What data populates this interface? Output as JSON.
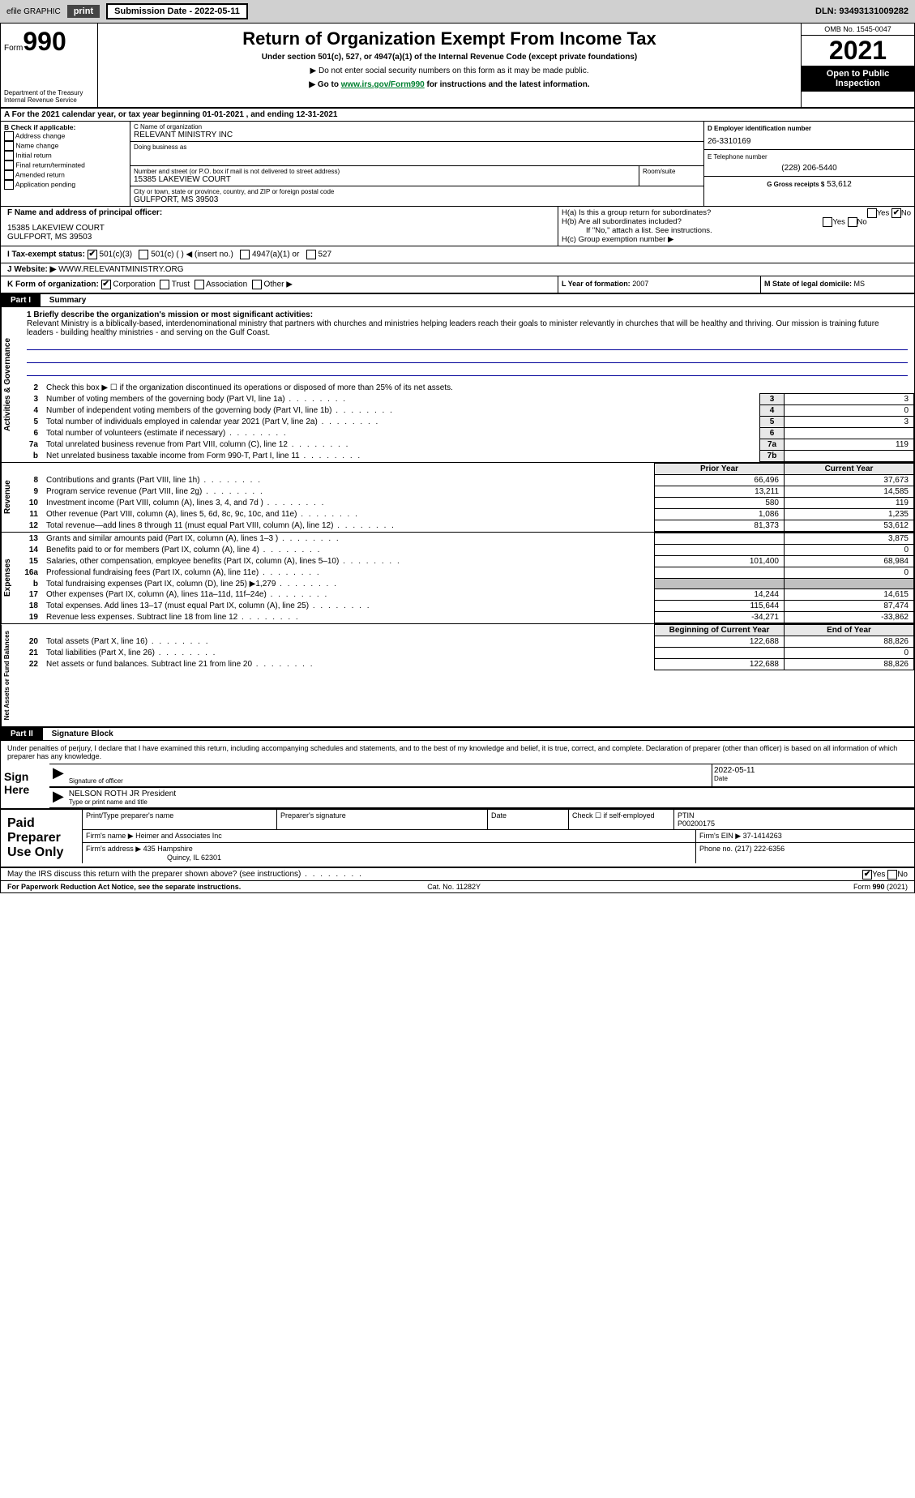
{
  "header_bar": {
    "efile": "efile GRAPHIC",
    "print": "print",
    "sub_label": "Submission Date - 2022-05-11",
    "dln": "DLN: 93493131009282"
  },
  "form_box": {
    "form_word": "Form",
    "number": "990",
    "title": "Return of Organization Exempt From Income Tax",
    "sub1": "Under section 501(c), 527, or 4947(a)(1) of the Internal Revenue Code (except private foundations)",
    "sub2": "▶ Do not enter social security numbers on this form as it may be made public.",
    "sub3_pre": "▶ Go to ",
    "sub3_link": "www.irs.gov/Form990",
    "sub3_post": " for instructions and the latest information.",
    "omb": "OMB No. 1545-0047",
    "year": "2021",
    "open": "Open to Public Inspection",
    "dept": "Department of the Treasury\nInternal Revenue Service"
  },
  "line_a": "For the 2021 calendar year, or tax year beginning 01-01-2021    , and ending 12-31-2021",
  "box_b": {
    "title": "B Check if applicable:",
    "opts": [
      "Address change",
      "Name change",
      "Initial return",
      "Final return/terminated",
      "Amended return",
      "Application pending"
    ]
  },
  "box_c": {
    "label_name": "C Name of organization",
    "org": "RELEVANT MINISTRY INC",
    "dba": "Doing business as",
    "street_label": "Number and street (or P.O. box if mail is not delivered to street address)",
    "room_label": "Room/suite",
    "street": "15385 LAKEVIEW COURT",
    "city_label": "City or town, state or province, country, and ZIP or foreign postal code",
    "city": "GULFPORT, MS  39503"
  },
  "box_d": {
    "label": "D Employer identification number",
    "val": "26-3310169"
  },
  "box_e": {
    "label": "E Telephone number",
    "val": "(228) 206-5440"
  },
  "box_g": {
    "label": "G Gross receipts $",
    "val": "53,612"
  },
  "box_f": {
    "label": "F  Name and address of principal officer:",
    "addr1": "15385 LAKEVIEW COURT",
    "addr2": "GULFPORT, MS  39503"
  },
  "box_h": {
    "a": "H(a)  Is this a group return for subordinates?",
    "b": "H(b)  Are all subordinates included?",
    "b_note": "If \"No,\" attach a list. See instructions.",
    "c": "H(c)  Group exemption number ▶"
  },
  "row_i": {
    "label": "I  Tax-exempt status:",
    "opts": [
      "501(c)(3)",
      "501(c) (   ) ◀ (insert no.)",
      "4947(a)(1) or",
      "527"
    ]
  },
  "row_j": {
    "label": "J  Website: ▶",
    "val": "WWW.RELEVANTMINISTRY.ORG"
  },
  "row_k": {
    "label": "K Form of organization:",
    "opts": [
      "Corporation",
      "Trust",
      "Association",
      "Other ▶"
    ]
  },
  "row_l": {
    "label": "L Year of formation:",
    "val": "2007"
  },
  "row_m": {
    "label": "M State of legal domicile:",
    "val": "MS"
  },
  "part1": {
    "hdr": "Part I",
    "title": "Summary"
  },
  "mission": {
    "label": "1  Briefly describe the organization's mission or most significant activities:",
    "text": "Relevant Ministry is a biblically-based, interdenominational ministry that partners with churches and ministries helping leaders reach their goals to minister relevantly in churches that will be healthy and thriving. Our mission is training future leaders - building healthy ministries - and serving on the Gulf Coast."
  },
  "side_labels": {
    "gov": "Activities & Governance",
    "rev": "Revenue",
    "exp": "Expenses",
    "net": "Net Assets or Fund Balances"
  },
  "gov_lines": {
    "l2": "Check this box ▶ ☐  if the organization discontinued its operations or disposed of more than 25% of its net assets.",
    "l3": {
      "t": "Number of voting members of the governing body (Part VI, line 1a)",
      "n": "3",
      "v": "3"
    },
    "l4": {
      "t": "Number of independent voting members of the governing body (Part VI, line 1b)",
      "n": "4",
      "v": "0"
    },
    "l5": {
      "t": "Total number of individuals employed in calendar year 2021 (Part V, line 2a)",
      "n": "5",
      "v": "3"
    },
    "l6": {
      "t": "Total number of volunteers (estimate if necessary)",
      "n": "6",
      "v": ""
    },
    "l7a": {
      "t": "Total unrelated business revenue from Part VIII, column (C), line 12",
      "n": "7a",
      "v": "119"
    },
    "l7b": {
      "t": "Net unrelated business taxable income from Form 990-T, Part I, line 11",
      "n": "7b",
      "v": ""
    }
  },
  "col_hdrs": {
    "prior": "Prior Year",
    "current": "Current Year",
    "beg": "Beginning of Current Year",
    "end": "End of Year"
  },
  "rev_lines": [
    {
      "n": "8",
      "t": "Contributions and grants (Part VIII, line 1h)",
      "p": "66,496",
      "c": "37,673"
    },
    {
      "n": "9",
      "t": "Program service revenue (Part VIII, line 2g)",
      "p": "13,211",
      "c": "14,585"
    },
    {
      "n": "10",
      "t": "Investment income (Part VIII, column (A), lines 3, 4, and 7d )",
      "p": "580",
      "c": "119"
    },
    {
      "n": "11",
      "t": "Other revenue (Part VIII, column (A), lines 5, 6d, 8c, 9c, 10c, and 11e)",
      "p": "1,086",
      "c": "1,235"
    },
    {
      "n": "12",
      "t": "Total revenue—add lines 8 through 11 (must equal Part VIII, column (A), line 12)",
      "p": "81,373",
      "c": "53,612"
    }
  ],
  "exp_lines": [
    {
      "n": "13",
      "t": "Grants and similar amounts paid (Part IX, column (A), lines 1–3 )",
      "p": "",
      "c": "3,875"
    },
    {
      "n": "14",
      "t": "Benefits paid to or for members (Part IX, column (A), line 4)",
      "p": "",
      "c": "0"
    },
    {
      "n": "15",
      "t": "Salaries, other compensation, employee benefits (Part IX, column (A), lines 5–10)",
      "p": "101,400",
      "c": "68,984"
    },
    {
      "n": "16a",
      "t": "Professional fundraising fees (Part IX, column (A), line 11e)",
      "p": "",
      "c": "0"
    },
    {
      "n": "b",
      "t": "Total fundraising expenses (Part IX, column (D), line 25) ▶1,279",
      "p": "GREY",
      "c": "GREY"
    },
    {
      "n": "17",
      "t": "Other expenses (Part IX, column (A), lines 11a–11d, 11f–24e)",
      "p": "14,244",
      "c": "14,615"
    },
    {
      "n": "18",
      "t": "Total expenses. Add lines 13–17 (must equal Part IX, column (A), line 25)",
      "p": "115,644",
      "c": "87,474"
    },
    {
      "n": "19",
      "t": "Revenue less expenses. Subtract line 18 from line 12",
      "p": "-34,271",
      "c": "-33,862"
    }
  ],
  "net_lines": [
    {
      "n": "20",
      "t": "Total assets (Part X, line 16)",
      "p": "122,688",
      "c": "88,826"
    },
    {
      "n": "21",
      "t": "Total liabilities (Part X, line 26)",
      "p": "",
      "c": "0"
    },
    {
      "n": "22",
      "t": "Net assets or fund balances. Subtract line 21 from line 20",
      "p": "122,688",
      "c": "88,826"
    }
  ],
  "part2": {
    "hdr": "Part II",
    "title": "Signature Block"
  },
  "sig_decl": "Under penalties of perjury, I declare that I have examined this return, including accompanying schedules and statements, and to the best of my knowledge and belief, it is true, correct, and complete. Declaration of preparer (other than officer) is based on all information of which preparer has any knowledge.",
  "sign": {
    "here": "Sign Here",
    "sig_of": "Signature of officer",
    "date": "Date",
    "date_val": "2022-05-11",
    "name": "NELSON ROTH JR President",
    "name_label": "Type or print name and title"
  },
  "paid": {
    "label": "Paid Preparer Use Only",
    "h_name": "Print/Type preparer's name",
    "h_sig": "Preparer's signature",
    "h_date": "Date",
    "h_check": "Check ☐ if self-employed",
    "h_ptin": "PTIN",
    "ptin": "P00200175",
    "firm_label": "Firm's name    ▶",
    "firm": "Heimer and Associates Inc",
    "ein_label": "Firm's EIN ▶",
    "ein": "37-1414263",
    "addr_label": "Firm's address ▶",
    "addr1": "435 Hampshire",
    "addr2": "Quincy, IL  62301",
    "phone_label": "Phone no.",
    "phone": "(217) 222-6356"
  },
  "discuss": "May the IRS discuss this return with the preparer shown above? (see instructions)",
  "footer": {
    "left": "For Paperwork Reduction Act Notice, see the separate instructions.",
    "mid": "Cat. No. 11282Y",
    "right": "Form 990 (2021)"
  }
}
